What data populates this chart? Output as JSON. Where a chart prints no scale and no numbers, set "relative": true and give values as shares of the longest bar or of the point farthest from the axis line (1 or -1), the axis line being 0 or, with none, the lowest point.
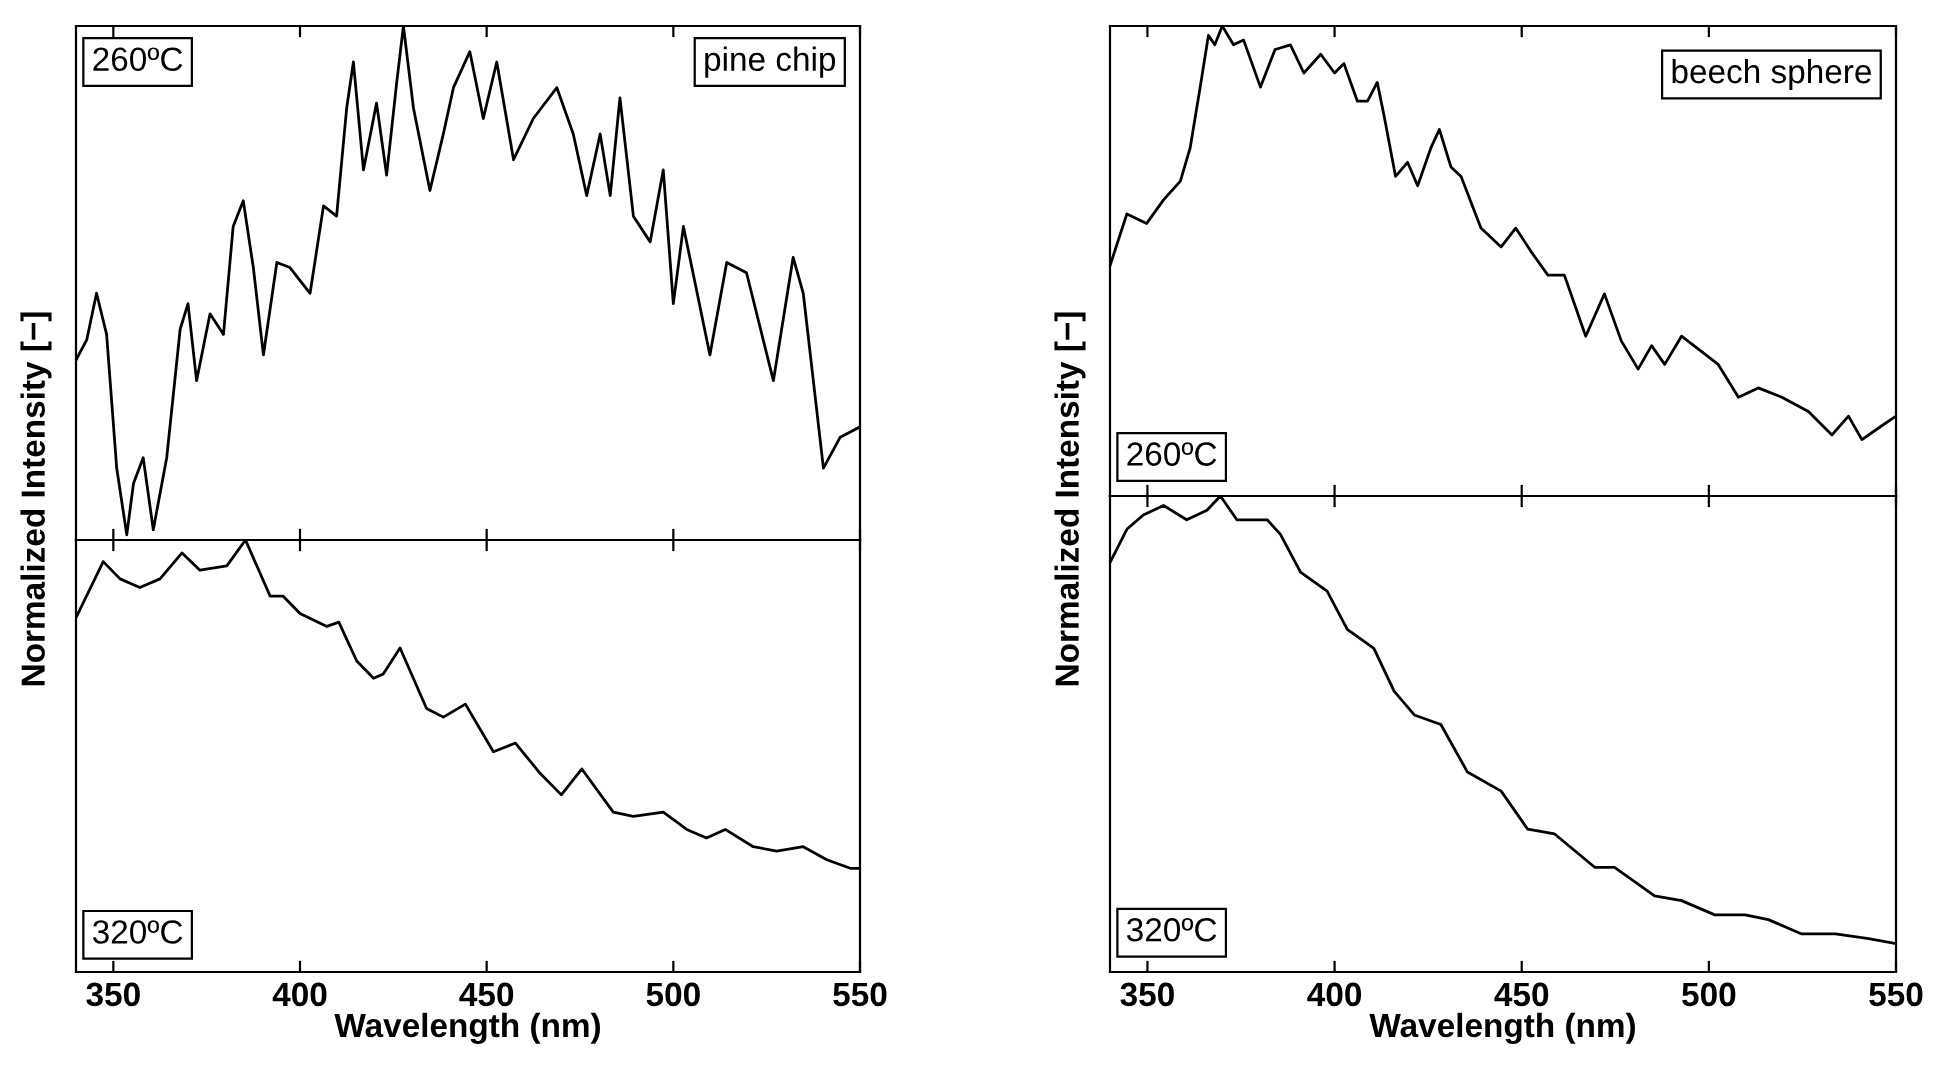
{
  "chart_data": [
    {
      "type": "line",
      "relative": true,
      "color": "#000000",
      "ylabel": "Normalized Intensity [−]",
      "annotations": [
        "260ºC",
        "pine chip"
      ],
      "xlim": [
        340,
        550
      ],
      "xticks": [
        350,
        400,
        450,
        500,
        550
      ],
      "tick_labels": false,
      "x": [
        340.0,
        342.9,
        345.5,
        348.2,
        350.9,
        353.6,
        355.4,
        358.0,
        360.7,
        364.3,
        367.9,
        370.0,
        372.3,
        375.9,
        379.5,
        382.1,
        384.8,
        387.5,
        390.2,
        393.8,
        397.3,
        402.7,
        406.3,
        409.8,
        412.5,
        414.3,
        417.0,
        420.5,
        423.2,
        425.9,
        427.7,
        430.4,
        434.8,
        438.4,
        441.1,
        445.5,
        449.1,
        452.7,
        457.2,
        462.5,
        468.8,
        473.2,
        476.8,
        480.4,
        483.1,
        485.7,
        489.3,
        493.8,
        497.3,
        500.0,
        502.7,
        509.8,
        514.3,
        519.6,
        526.8,
        532.1,
        534.8,
        540.2,
        544.7,
        550.0
      ],
      "values": [
        0.35,
        0.39,
        0.48,
        0.4,
        0.14,
        0.01,
        0.11,
        0.16,
        0.02,
        0.16,
        0.41,
        0.46,
        0.31,
        0.44,
        0.4,
        0.61,
        0.66,
        0.53,
        0.36,
        0.54,
        0.53,
        0.48,
        0.65,
        0.63,
        0.84,
        0.93,
        0.72,
        0.85,
        0.71,
        0.89,
        1.0,
        0.84,
        0.68,
        0.79,
        0.88,
        0.95,
        0.82,
        0.93,
        0.74,
        0.82,
        0.88,
        0.79,
        0.67,
        0.79,
        0.67,
        0.86,
        0.63,
        0.58,
        0.72,
        0.46,
        0.61,
        0.36,
        0.54,
        0.52,
        0.31,
        0.55,
        0.48,
        0.14,
        0.2,
        0.22
      ]
    },
    {
      "type": "line",
      "relative": true,
      "color": "#000000",
      "xlabel": "Wavelength (nm)",
      "annotations": [
        "320ºC"
      ],
      "xlim": [
        340,
        550
      ],
      "xticks": [
        350,
        400,
        450,
        500,
        550
      ],
      "tick_labels": "x",
      "x": [
        340.0,
        347.3,
        351.8,
        357.1,
        362.5,
        368.4,
        373.2,
        380.4,
        385.4,
        392.0,
        395.5,
        400.0,
        407.2,
        410.4,
        415.2,
        419.7,
        422.3,
        426.8,
        433.9,
        438.4,
        444.3,
        451.8,
        457.7,
        464.3,
        470.0,
        475.5,
        483.9,
        489.3,
        497.3,
        503.6,
        508.9,
        513.9,
        521.4,
        527.7,
        534.8,
        541.1,
        547.4,
        550.0
      ],
      "values": [
        0.82,
        0.95,
        0.91,
        0.89,
        0.91,
        0.97,
        0.93,
        0.94,
        1.0,
        0.87,
        0.87,
        0.83,
        0.8,
        0.81,
        0.72,
        0.68,
        0.69,
        0.75,
        0.61,
        0.59,
        0.62,
        0.51,
        0.53,
        0.46,
        0.41,
        0.47,
        0.37,
        0.36,
        0.37,
        0.33,
        0.31,
        0.33,
        0.29,
        0.28,
        0.29,
        0.26,
        0.24,
        0.24
      ]
    },
    {
      "type": "line",
      "relative": true,
      "color": "#000000",
      "ylabel": "Normalized Intensity [−]",
      "annotations": [
        "beech sphere",
        "260ºC"
      ],
      "xlim": [
        340,
        550
      ],
      "xticks": [
        350,
        400,
        450,
        500,
        550
      ],
      "tick_labels": false,
      "x": [
        340.0,
        344.5,
        349.8,
        354.3,
        358.8,
        361.4,
        364.1,
        366.3,
        368.0,
        370.0,
        373.0,
        375.7,
        380.2,
        384.1,
        388.2,
        391.8,
        396.3,
        400.0,
        402.5,
        406.1,
        408.8,
        411.4,
        413.2,
        416.3,
        419.5,
        422.2,
        425.7,
        428.0,
        431.1,
        433.8,
        439.1,
        444.5,
        448.4,
        452.5,
        457.0,
        461.4,
        467.1,
        472.1,
        476.6,
        481.1,
        484.7,
        488.2,
        492.7,
        502.5,
        507.9,
        513.2,
        519.5,
        526.6,
        532.9,
        537.3,
        540.9,
        546.3,
        550.0
      ],
      "values": [
        0.49,
        0.6,
        0.58,
        0.63,
        0.67,
        0.74,
        0.87,
        0.98,
        0.96,
        1.0,
        0.96,
        0.97,
        0.87,
        0.95,
        0.96,
        0.9,
        0.94,
        0.9,
        0.92,
        0.84,
        0.84,
        0.88,
        0.81,
        0.68,
        0.71,
        0.66,
        0.74,
        0.78,
        0.7,
        0.68,
        0.57,
        0.53,
        0.57,
        0.52,
        0.47,
        0.47,
        0.34,
        0.43,
        0.33,
        0.27,
        0.32,
        0.28,
        0.34,
        0.28,
        0.21,
        0.23,
        0.21,
        0.18,
        0.13,
        0.17,
        0.12,
        0.15,
        0.17
      ]
    },
    {
      "type": "line",
      "relative": true,
      "color": "#000000",
      "xlabel": "Wavelength (nm)",
      "annotations": [
        "320ºC"
      ],
      "xlim": [
        340,
        550
      ],
      "xticks": [
        350,
        400,
        450,
        500,
        550
      ],
      "tick_labels": "x",
      "x": [
        340.0,
        344.5,
        348.9,
        354.3,
        360.5,
        365.9,
        369.5,
        373.9,
        382.0,
        385.5,
        390.9,
        398.0,
        403.4,
        410.5,
        415.9,
        421.3,
        428.4,
        435.5,
        444.5,
        451.6,
        458.8,
        469.5,
        474.8,
        485.5,
        492.7,
        501.6,
        509.7,
        515.9,
        524.8,
        533.8,
        542.7,
        549.8
      ],
      "values": [
        0.86,
        0.93,
        0.96,
        0.98,
        0.95,
        0.97,
        1.0,
        0.95,
        0.95,
        0.92,
        0.84,
        0.8,
        0.72,
        0.68,
        0.59,
        0.54,
        0.52,
        0.42,
        0.38,
        0.3,
        0.29,
        0.22,
        0.22,
        0.16,
        0.15,
        0.12,
        0.12,
        0.11,
        0.08,
        0.08,
        0.07,
        0.06
      ]
    }
  ]
}
